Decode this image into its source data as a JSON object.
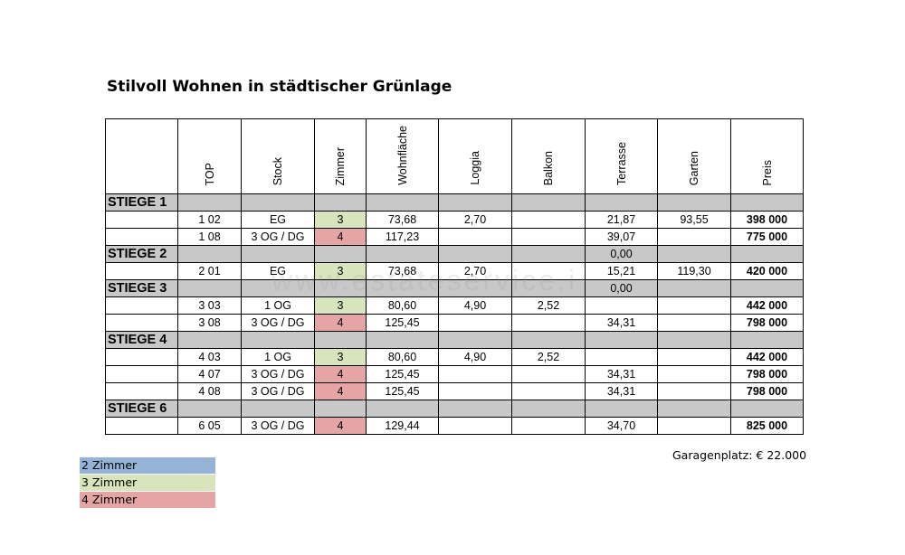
{
  "title": "Stilvoll Wohnen in städtischer Grünlage",
  "columns": [
    "",
    "TOP",
    "Stock",
    "Zimmer",
    "Wohnfläche",
    "Loggia",
    "Balkon",
    "Terrasse",
    "Garten",
    "Preis"
  ],
  "rows": [
    {
      "type": "section",
      "label": "STIEGE 1"
    },
    {
      "type": "unit",
      "top": "1 02",
      "stock": "EG",
      "zimmer": "3",
      "wohnflaeche": "73,68",
      "loggia": "2,70",
      "balkon": "",
      "terrasse": "21,87",
      "garten": "93,55",
      "preis": "398 000"
    },
    {
      "type": "unit",
      "top": "1 08",
      "stock": "3 OG / DG",
      "zimmer": "4",
      "wohnflaeche": "117,23",
      "loggia": "",
      "balkon": "",
      "terrasse": "39,07",
      "garten": "",
      "preis": "775 000"
    },
    {
      "type": "section",
      "label": "STIEGE 2",
      "terrasse": "0,00"
    },
    {
      "type": "unit",
      "top": "2 01",
      "stock": "EG",
      "zimmer": "3",
      "wohnflaeche": "73,68",
      "loggia": "2,70",
      "balkon": "",
      "terrasse": "15,21",
      "garten": "119,30",
      "preis": "420 000"
    },
    {
      "type": "section",
      "label": "STIEGE 3",
      "terrasse": "0,00"
    },
    {
      "type": "unit",
      "top": "3 03",
      "stock": "1 OG",
      "zimmer": "3",
      "wohnflaeche": "80,60",
      "loggia": "4,90",
      "balkon": "2,52",
      "terrasse": "",
      "garten": "",
      "preis": "442 000"
    },
    {
      "type": "unit",
      "top": "3 08",
      "stock": "3 OG / DG",
      "zimmer": "4",
      "wohnflaeche": "125,45",
      "loggia": "",
      "balkon": "",
      "terrasse": "34,31",
      "garten": "",
      "preis": "798 000"
    },
    {
      "type": "section",
      "label": "STIEGE 4"
    },
    {
      "type": "unit",
      "top": "4 03",
      "stock": "1 OG",
      "zimmer": "3",
      "wohnflaeche": "80,60",
      "loggia": "4,90",
      "balkon": "2,52",
      "terrasse": "",
      "garten": "",
      "preis": "442 000"
    },
    {
      "type": "unit",
      "top": "4 07",
      "stock": "3 OG / DG",
      "zimmer": "4",
      "wohnflaeche": "125,45",
      "loggia": "",
      "balkon": "",
      "terrasse": "34,31",
      "garten": "",
      "preis": "798 000"
    },
    {
      "type": "unit",
      "top": "4 08",
      "stock": "3 OG / DG",
      "zimmer": "4",
      "wohnflaeche": "125,45",
      "loggia": "",
      "balkon": "",
      "terrasse": "34,31",
      "garten": "",
      "preis": "798 000"
    },
    {
      "type": "section",
      "label": "STIEGE 6"
    },
    {
      "type": "unit",
      "top": "6 05",
      "stock": "3 OG / DG",
      "zimmer": "4",
      "wohnflaeche": "129,44",
      "loggia": "",
      "balkon": "",
      "terrasse": "34,70",
      "garten": "",
      "preis": "825 000"
    }
  ],
  "garage": "Garagenplatz: €  22.000",
  "legend": [
    {
      "label": "2 Zimmer",
      "color": "#95b3d7"
    },
    {
      "label": "3 Zimmer",
      "color": "#d8e4bc"
    },
    {
      "label": "4 Zimmer",
      "color": "#e6a5a5"
    }
  ],
  "watermark": "www.estateservice.i"
}
